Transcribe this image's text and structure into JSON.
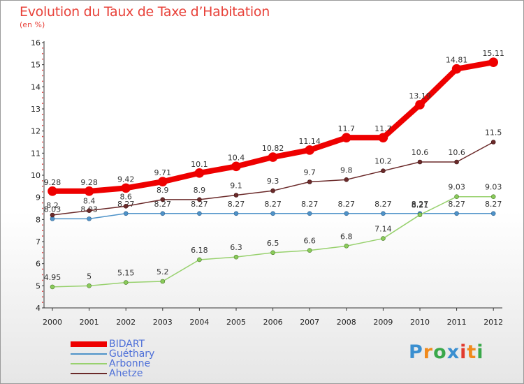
{
  "title": "Evolution du Taux de Taxe d’Habitation",
  "subtitle": "(en %)",
  "logo": {
    "text": "Proxiti",
    "colors": [
      "#3a8fd0",
      "#f08a1c",
      "#3aa84a",
      "#3a8fd0",
      "#e23a2e",
      "#f08a1c",
      "#3aa84a"
    ]
  },
  "chart_data": {
    "type": "line",
    "x": [
      "2000",
      "2001",
      "2002",
      "2003",
      "2004",
      "2005",
      "2006",
      "2007",
      "2008",
      "2009",
      "2010",
      "2011",
      "2012"
    ],
    "ylim": [
      4,
      16
    ],
    "yticks": [
      "4",
      "5",
      "6",
      "7",
      "8",
      "9",
      "10",
      "11",
      "12",
      "13",
      "14",
      "15",
      "16"
    ],
    "grid": false,
    "legend_position": "bottom-left",
    "series": [
      {
        "name": "BIDART",
        "color": "#ee0000",
        "values": [
          9.28,
          9.28,
          9.42,
          9.71,
          10.1,
          10.4,
          10.82,
          11.14,
          11.7,
          11.7,
          13.19,
          14.81,
          15.11
        ],
        "labels": [
          "9.28",
          "9.28",
          "9.42",
          "9.71",
          "10.1",
          "10.4",
          "10.82",
          "11.14",
          "11.7",
          "11.7",
          "13.19",
          "14.81",
          "15.11"
        ]
      },
      {
        "name": "Guéthary",
        "color": "#4f93c9",
        "values": [
          8.03,
          8.03,
          8.27,
          8.27,
          8.27,
          8.27,
          8.27,
          8.27,
          8.27,
          8.27,
          8.27,
          8.27,
          8.27
        ],
        "labels": [
          "8.03",
          "8.03",
          "8.27",
          "8.27",
          "8.27",
          "8.27",
          "8.27",
          "8.27",
          "8.27",
          "8.27",
          "8.27",
          "8.27",
          "8.27"
        ]
      },
      {
        "name": "Arbonne",
        "color": "#98d16e",
        "values": [
          4.95,
          5,
          5.15,
          5.2,
          6.18,
          6.3,
          6.5,
          6.6,
          6.8,
          7.14,
          8.21,
          9.03,
          9.03
        ],
        "labels": [
          "4.95",
          "5",
          "5.15",
          "5.2",
          "6.18",
          "6.3",
          "6.5",
          "6.6",
          "6.8",
          "7.14",
          "8.21",
          "9.03",
          "9.03"
        ]
      },
      {
        "name": "Ahetze",
        "color": "#6b2a2a",
        "values": [
          8.2,
          8.4,
          8.6,
          8.9,
          8.9,
          9.1,
          9.3,
          9.7,
          9.8,
          10.2,
          10.6,
          10.6,
          11.5
        ],
        "labels": [
          "8.2",
          "8.4",
          "8.6",
          "8.9",
          "8.9",
          "9.1",
          "9.3",
          "9.7",
          "9.8",
          "10.2",
          "10.6",
          "10.6",
          "11.5"
        ]
      }
    ]
  }
}
